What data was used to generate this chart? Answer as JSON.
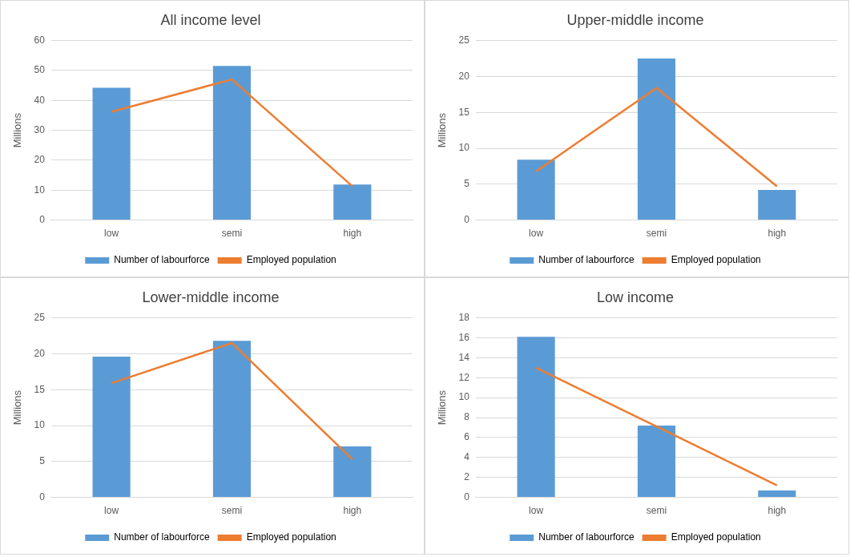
{
  "chart_data": [
    {
      "type": "bar",
      "title": "All income level",
      "ylabel": "Millions",
      "categories": [
        "low",
        "semi",
        "high"
      ],
      "series": [
        {
          "name": "Number of labourforce",
          "color": "#5b9bd5",
          "values": [
            44.2,
            51.5,
            11.9
          ]
        },
        {
          "name": "Employed population",
          "type": "line",
          "color": "#ed7d31",
          "values": [
            36.2,
            47,
            11.3
          ]
        }
      ],
      "ylim": [
        0,
        60
      ],
      "yticks": [
        0,
        10,
        20,
        30,
        40,
        50,
        60
      ],
      "grid": "y",
      "legend": "bottom",
      "marker": "none"
    },
    {
      "type": "bar",
      "title": "Upper-middle income",
      "ylabel": "Millions",
      "categories": [
        "low",
        "semi",
        "high"
      ],
      "series": [
        {
          "name": "Number of labourforce",
          "color": "#5b9bd5",
          "values": [
            8.4,
            22.5,
            4.2
          ]
        },
        {
          "name": "Employed population",
          "type": "line",
          "color": "#ed7d31",
          "values": [
            6.8,
            18.4,
            4.7
          ]
        }
      ],
      "ylim": [
        0,
        25
      ],
      "yticks": [
        0,
        5,
        10,
        15,
        20,
        25
      ],
      "grid": "y",
      "legend": "bottom",
      "marker": "none"
    },
    {
      "type": "bar",
      "title": "Lower-middle income",
      "ylabel": "Millions",
      "categories": [
        "low",
        "semi",
        "high"
      ],
      "series": [
        {
          "name": "Number of labourforce",
          "color": "#5b9bd5",
          "values": [
            19.6,
            21.8,
            7.1
          ]
        },
        {
          "name": "Employed population",
          "type": "line",
          "color": "#ed7d31",
          "values": [
            15.9,
            21.5,
            5.3
          ]
        }
      ],
      "ylim": [
        0,
        25
      ],
      "yticks": [
        0,
        5,
        10,
        15,
        20,
        25
      ],
      "grid": "y",
      "legend": "bottom",
      "marker": "none"
    },
    {
      "type": "bar",
      "title": "Low income",
      "ylabel": "Millions",
      "categories": [
        "low",
        "semi",
        "high"
      ],
      "series": [
        {
          "name": "Number of labourforce",
          "color": "#5b9bd5",
          "values": [
            16.1,
            7.2,
            0.7
          ]
        },
        {
          "name": "Employed population",
          "type": "line",
          "color": "#ed7d31",
          "values": [
            13.0,
            7.1,
            1.2
          ]
        }
      ],
      "ylim": [
        0,
        18
      ],
      "yticks": [
        0,
        2,
        4,
        6,
        8,
        10,
        12,
        14,
        16,
        18
      ],
      "grid": "y",
      "legend": "bottom",
      "marker": "none"
    }
  ]
}
